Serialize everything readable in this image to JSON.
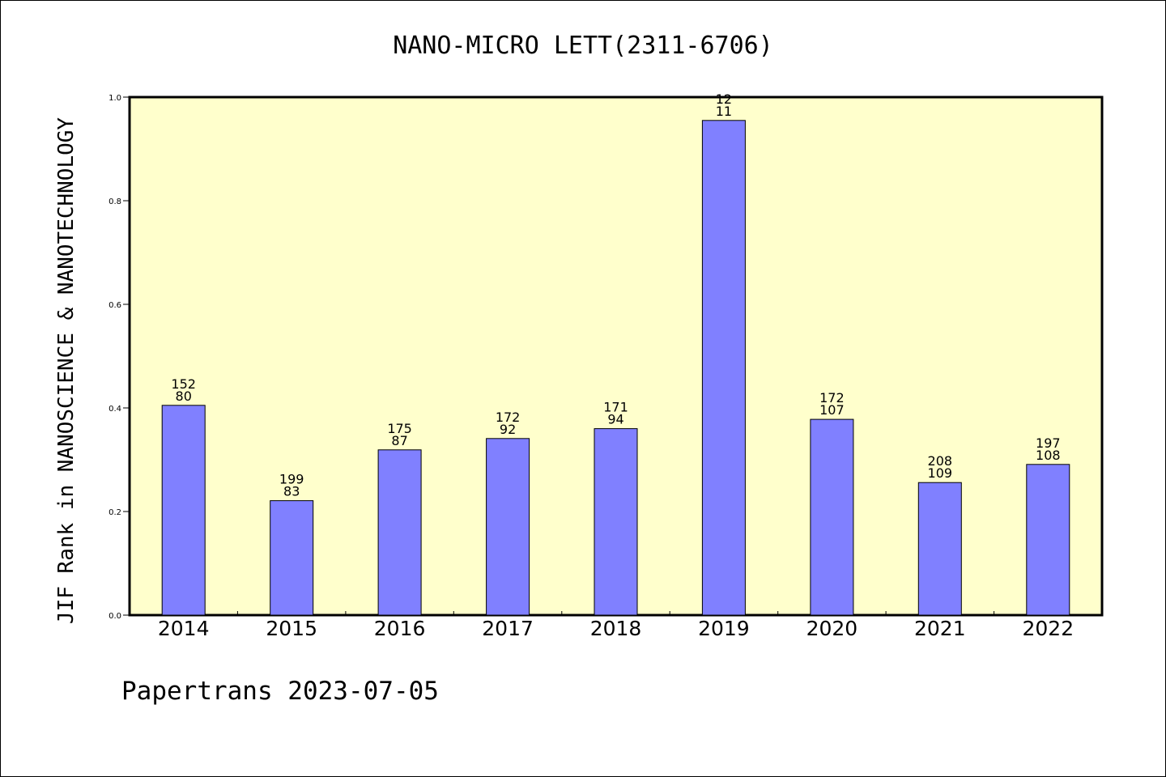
{
  "footer": "Papertrans 2023-07-05",
  "chart_data": {
    "type": "bar",
    "title": "NANO-MICRO LETT(2311-6706)",
    "xlabel": "",
    "ylabel": "JIF Rank in NANOSCIENCE & NANOTECHNOLOGY",
    "ylim": [
      0.0,
      1.0
    ],
    "yticks": [
      "0.0",
      "0.2",
      "0.4",
      "0.6",
      "0.8",
      "1.0"
    ],
    "grid": false,
    "categories": [
      "2014",
      "2015",
      "2016",
      "2017",
      "2018",
      "2019",
      "2020",
      "2021",
      "2022"
    ],
    "values": [
      0.405,
      0.221,
      0.319,
      0.341,
      0.36,
      0.955,
      0.378,
      0.256,
      0.291
    ],
    "labels_top": [
      "152",
      "199",
      "175",
      "172",
      "171",
      "12",
      "172",
      "208",
      "197"
    ],
    "labels_bottom": [
      "80",
      "83",
      "87",
      "92",
      "94",
      "11",
      "107",
      "109",
      "108"
    ],
    "colors": {
      "plot_background": "#ffffcc",
      "bar_fill": "#8080ff",
      "bar_stroke": "#000000"
    }
  }
}
